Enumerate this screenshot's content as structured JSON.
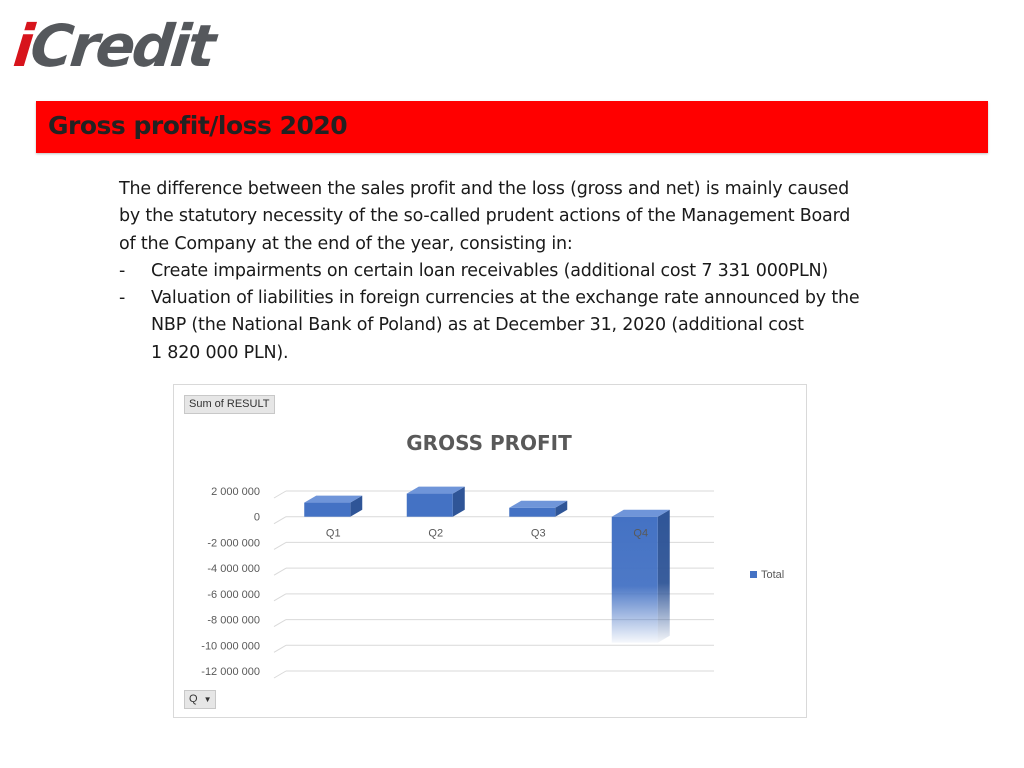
{
  "logo": {
    "i": "i",
    "rest": "Credit"
  },
  "banner": {
    "title": "Gross profit/loss 2020"
  },
  "body": {
    "line1": "The difference between the sales profit and the loss (gross and net) is mainly caused",
    "line2": "by the statutory necessity of the so-called prudent actions of the Management Board",
    "line3": "of the Company at the end of the year, consisting in:",
    "bullet_dash": "-",
    "bullet1": "Create impairments on certain loan receivables (additional cost 7 331 000PLN)",
    "bullet2_line1": "Valuation of liabilities in foreign currencies at the exchange rate announced by the",
    "bullet2_line2": "NBP (the National Bank of Poland) as at December 31, 2020 (additional cost",
    "bullet2_line3": "1 820 000 PLN)."
  },
  "pivot": {
    "value_field": "Sum of RESULT",
    "axis_field": "Q"
  },
  "colors": {
    "bar": "#4472c4",
    "bar_dark": "#2f5597",
    "bar_top": "#6f95d9",
    "banner": "#ff0000",
    "grid": "#d9d9d9"
  },
  "chart_data": {
    "type": "bar",
    "title": "GROSS PROFIT",
    "categories": [
      "Q1",
      "Q2",
      "Q3",
      "Q4"
    ],
    "series": [
      {
        "name": "Total",
        "values": [
          1100000,
          1800000,
          700000,
          -9800000
        ]
      }
    ],
    "ylim": [
      -12000000,
      2000000
    ],
    "yticks": [
      2000000,
      0,
      -2000000,
      -4000000,
      -6000000,
      -8000000,
      -10000000,
      -12000000
    ],
    "ytick_labels": [
      "2 000 000",
      "0",
      "-2 000 000",
      "-4 000 000",
      "-6 000 000",
      "-8 000 000",
      "-10 000 000",
      "-12 000 000"
    ],
    "legend_position": "right",
    "grid": true,
    "style": "3d-column"
  }
}
